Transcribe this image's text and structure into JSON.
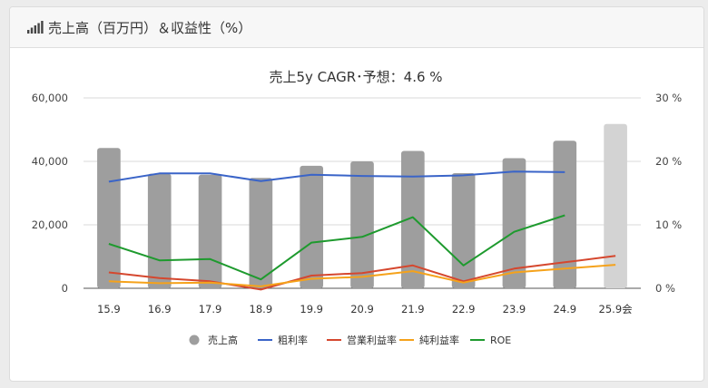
{
  "header": {
    "title": "売上高（百万円）＆収益性（%）",
    "icon": "signal-bars-icon"
  },
  "chart_data": {
    "type": "bar",
    "title": "売上5y CAGR･予想：4.6 %",
    "categories": [
      "15.9",
      "16.9",
      "17.9",
      "18.9",
      "19.9",
      "20.9",
      "21.9",
      "22.9",
      "23.9",
      "24.9",
      "25.9会"
    ],
    "y_left": {
      "ylim": [
        0,
        60000
      ],
      "ticks": [
        "0",
        "20,000",
        "40,000",
        "60,000"
      ],
      "tick_values": [
        0,
        20000,
        40000,
        60000
      ]
    },
    "y_right": {
      "ylim": [
        0,
        30
      ],
      "ticks": [
        "0 %",
        "10 %",
        "20 %",
        "30 %"
      ],
      "tick_values": [
        0,
        10,
        20,
        30
      ]
    },
    "grid": true,
    "legend_position": "bottom",
    "bar_series": {
      "name": "売上高",
      "color": "#9e9e9e",
      "forecast_color": "#d3d3d3",
      "values": [
        44200,
        36100,
        35800,
        34800,
        38600,
        40000,
        43300,
        36300,
        41000,
        46500,
        51800
      ]
    },
    "line_series": [
      {
        "name": "粗利率",
        "color": "#3a64c8",
        "values": [
          16.8,
          18.1,
          18.1,
          16.9,
          17.9,
          17.7,
          17.6,
          17.8,
          18.4,
          18.3,
          null
        ]
      },
      {
        "name": "営業利益率",
        "color": "#d5472e",
        "values": [
          2.5,
          1.6,
          1.1,
          -0.2,
          2.0,
          2.4,
          3.6,
          1.1,
          3.1,
          4.1,
          5.1
        ]
      },
      {
        "name": "純利益率",
        "color": "#f5a21b",
        "values": [
          1.1,
          0.8,
          0.9,
          0.3,
          1.5,
          1.8,
          2.7,
          0.9,
          2.5,
          3.1,
          3.7
        ]
      },
      {
        "name": "ROE",
        "color": "#1e9a2e",
        "values": [
          7.0,
          4.4,
          4.6,
          1.4,
          7.2,
          8.1,
          11.2,
          3.6,
          8.9,
          11.5,
          null
        ]
      }
    ]
  }
}
